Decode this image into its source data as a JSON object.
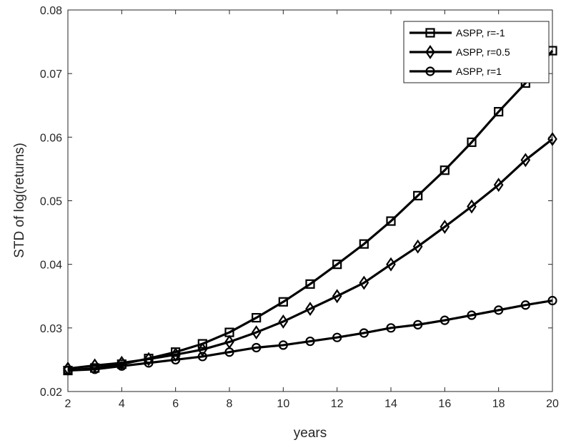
{
  "chart_data": {
    "type": "line",
    "title": "",
    "xlabel": "years",
    "ylabel": "STD of log(returns)",
    "xlim": [
      2,
      20
    ],
    "ylim": [
      0.02,
      0.08
    ],
    "xticks": [
      "2",
      "4",
      "6",
      "8",
      "10",
      "12",
      "14",
      "16",
      "18",
      "20"
    ],
    "yticks": [
      "0.02",
      "0.03",
      "0.04",
      "0.05",
      "0.06",
      "0.07",
      "0.08"
    ],
    "grid": false,
    "legend_position": "top-right",
    "x": [
      2,
      3,
      4,
      5,
      6,
      7,
      8,
      9,
      10,
      11,
      12,
      13,
      14,
      15,
      16,
      17,
      18,
      19,
      20
    ],
    "series": [
      {
        "name": "ASPP, r=-1",
        "marker": "square",
        "values": [
          0.0233,
          0.0237,
          0.0243,
          0.0252,
          0.0262,
          0.0275,
          0.0293,
          0.0316,
          0.0341,
          0.0369,
          0.04,
          0.0432,
          0.0468,
          0.0508,
          0.0548,
          0.0592,
          0.064,
          0.0685,
          0.0736
        ]
      },
      {
        "name": "ASPP, r=0.5",
        "marker": "diamond",
        "values": [
          0.0236,
          0.0241,
          0.0245,
          0.0251,
          0.0258,
          0.0266,
          0.0278,
          0.0293,
          0.031,
          0.033,
          0.035,
          0.0371,
          0.04,
          0.0428,
          0.0459,
          0.0491,
          0.0525,
          0.0564,
          0.0597
        ]
      },
      {
        "name": "ASPP, r=1",
        "marker": "circle",
        "values": [
          0.0233,
          0.0235,
          0.024,
          0.0245,
          0.025,
          0.0255,
          0.0262,
          0.0269,
          0.0273,
          0.0279,
          0.0285,
          0.0292,
          0.03,
          0.0305,
          0.0312,
          0.032,
          0.0328,
          0.0336,
          0.0343
        ]
      }
    ]
  }
}
